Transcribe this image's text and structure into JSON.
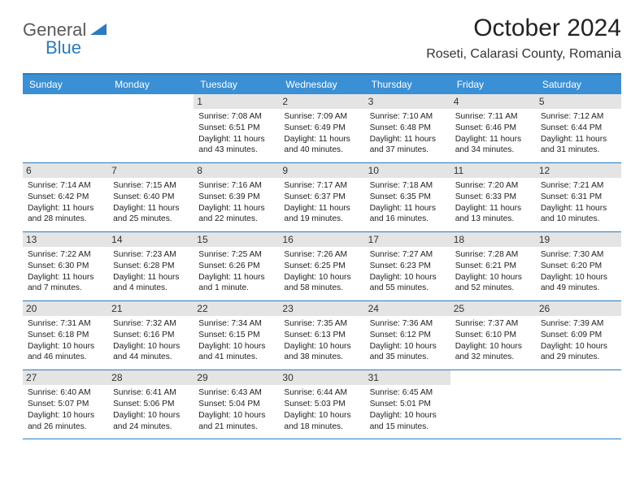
{
  "logo": {
    "text1": "General",
    "text2": "Blue"
  },
  "title": "October 2024",
  "location": "Roseti, Calarasi County, Romania",
  "colors": {
    "header_bg": "#3b8fd4",
    "header_border": "#2b7bbf",
    "daynum_bg": "#e4e4e4",
    "text": "#222222",
    "logo_gray": "#5a5a5a",
    "logo_blue": "#2b7bbf"
  },
  "day_labels": [
    "Sunday",
    "Monday",
    "Tuesday",
    "Wednesday",
    "Thursday",
    "Friday",
    "Saturday"
  ],
  "weeks": [
    [
      null,
      null,
      {
        "n": "1",
        "sr": "7:08 AM",
        "ss": "6:51 PM",
        "dl": "11 hours and 43 minutes."
      },
      {
        "n": "2",
        "sr": "7:09 AM",
        "ss": "6:49 PM",
        "dl": "11 hours and 40 minutes."
      },
      {
        "n": "3",
        "sr": "7:10 AM",
        "ss": "6:48 PM",
        "dl": "11 hours and 37 minutes."
      },
      {
        "n": "4",
        "sr": "7:11 AM",
        "ss": "6:46 PM",
        "dl": "11 hours and 34 minutes."
      },
      {
        "n": "5",
        "sr": "7:12 AM",
        "ss": "6:44 PM",
        "dl": "11 hours and 31 minutes."
      }
    ],
    [
      {
        "n": "6",
        "sr": "7:14 AM",
        "ss": "6:42 PM",
        "dl": "11 hours and 28 minutes."
      },
      {
        "n": "7",
        "sr": "7:15 AM",
        "ss": "6:40 PM",
        "dl": "11 hours and 25 minutes."
      },
      {
        "n": "8",
        "sr": "7:16 AM",
        "ss": "6:39 PM",
        "dl": "11 hours and 22 minutes."
      },
      {
        "n": "9",
        "sr": "7:17 AM",
        "ss": "6:37 PM",
        "dl": "11 hours and 19 minutes."
      },
      {
        "n": "10",
        "sr": "7:18 AM",
        "ss": "6:35 PM",
        "dl": "11 hours and 16 minutes."
      },
      {
        "n": "11",
        "sr": "7:20 AM",
        "ss": "6:33 PM",
        "dl": "11 hours and 13 minutes."
      },
      {
        "n": "12",
        "sr": "7:21 AM",
        "ss": "6:31 PM",
        "dl": "11 hours and 10 minutes."
      }
    ],
    [
      {
        "n": "13",
        "sr": "7:22 AM",
        "ss": "6:30 PM",
        "dl": "11 hours and 7 minutes."
      },
      {
        "n": "14",
        "sr": "7:23 AM",
        "ss": "6:28 PM",
        "dl": "11 hours and 4 minutes."
      },
      {
        "n": "15",
        "sr": "7:25 AM",
        "ss": "6:26 PM",
        "dl": "11 hours and 1 minute."
      },
      {
        "n": "16",
        "sr": "7:26 AM",
        "ss": "6:25 PM",
        "dl": "10 hours and 58 minutes."
      },
      {
        "n": "17",
        "sr": "7:27 AM",
        "ss": "6:23 PM",
        "dl": "10 hours and 55 minutes."
      },
      {
        "n": "18",
        "sr": "7:28 AM",
        "ss": "6:21 PM",
        "dl": "10 hours and 52 minutes."
      },
      {
        "n": "19",
        "sr": "7:30 AM",
        "ss": "6:20 PM",
        "dl": "10 hours and 49 minutes."
      }
    ],
    [
      {
        "n": "20",
        "sr": "7:31 AM",
        "ss": "6:18 PM",
        "dl": "10 hours and 46 minutes."
      },
      {
        "n": "21",
        "sr": "7:32 AM",
        "ss": "6:16 PM",
        "dl": "10 hours and 44 minutes."
      },
      {
        "n": "22",
        "sr": "7:34 AM",
        "ss": "6:15 PM",
        "dl": "10 hours and 41 minutes."
      },
      {
        "n": "23",
        "sr": "7:35 AM",
        "ss": "6:13 PM",
        "dl": "10 hours and 38 minutes."
      },
      {
        "n": "24",
        "sr": "7:36 AM",
        "ss": "6:12 PM",
        "dl": "10 hours and 35 minutes."
      },
      {
        "n": "25",
        "sr": "7:37 AM",
        "ss": "6:10 PM",
        "dl": "10 hours and 32 minutes."
      },
      {
        "n": "26",
        "sr": "7:39 AM",
        "ss": "6:09 PM",
        "dl": "10 hours and 29 minutes."
      }
    ],
    [
      {
        "n": "27",
        "sr": "6:40 AM",
        "ss": "5:07 PM",
        "dl": "10 hours and 26 minutes."
      },
      {
        "n": "28",
        "sr": "6:41 AM",
        "ss": "5:06 PM",
        "dl": "10 hours and 24 minutes."
      },
      {
        "n": "29",
        "sr": "6:43 AM",
        "ss": "5:04 PM",
        "dl": "10 hours and 21 minutes."
      },
      {
        "n": "30",
        "sr": "6:44 AM",
        "ss": "5:03 PM",
        "dl": "10 hours and 18 minutes."
      },
      {
        "n": "31",
        "sr": "6:45 AM",
        "ss": "5:01 PM",
        "dl": "10 hours and 15 minutes."
      },
      null,
      null
    ]
  ],
  "labels": {
    "sunrise": "Sunrise:",
    "sunset": "Sunset:",
    "daylight": "Daylight:"
  }
}
